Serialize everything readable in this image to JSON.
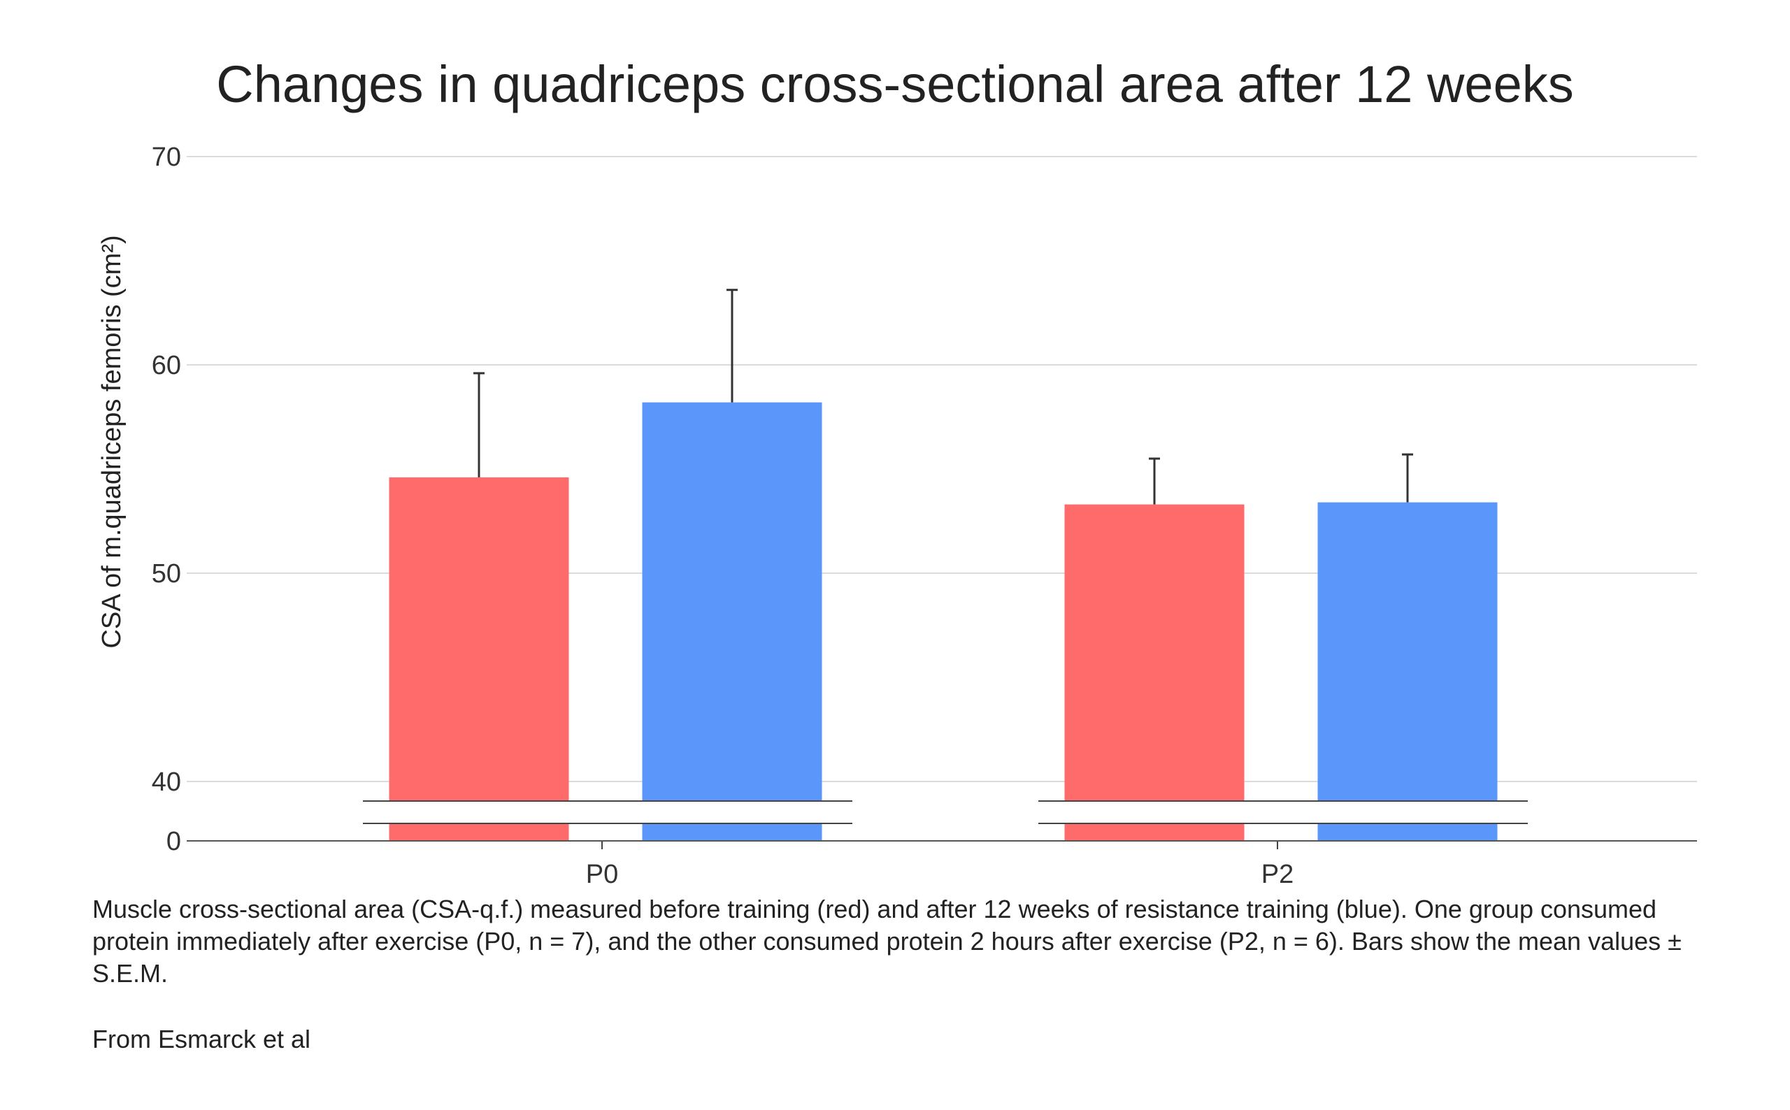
{
  "chart_data": {
    "type": "bar",
    "title": "Changes in quadriceps cross-sectional area after 12 weeks",
    "xlabel": "",
    "ylabel": "CSA of m.quadriceps femoris (cm²)",
    "categories": [
      "P0",
      "P2"
    ],
    "y_ticks": [
      0,
      40,
      50,
      60,
      70
    ],
    "ylim_broken": {
      "lower": [
        0,
        0
      ],
      "upper": [
        37,
        70
      ]
    },
    "axis_break": true,
    "grid": true,
    "series": [
      {
        "color": "#ff6b6b",
        "values": [
          54.6,
          53.3
        ],
        "error_upper": [
          5.0,
          2.2
        ]
      },
      {
        "color": "#5b96fb",
        "values": [
          58.2,
          53.4
        ],
        "error_upper": [
          5.4,
          2.3
        ]
      }
    ]
  },
  "caption": "Muscle cross-sectional area (CSA-q.f.) measured before training (red) and after 12 weeks of resistance training (blue). One group consumed protein immediately after exercise (P0, n = 7), and the other consumed protein 2 hours after exercise (P2, n = 6). Bars show the mean values ± S.E.M.",
  "source": "From Esmarck et al"
}
